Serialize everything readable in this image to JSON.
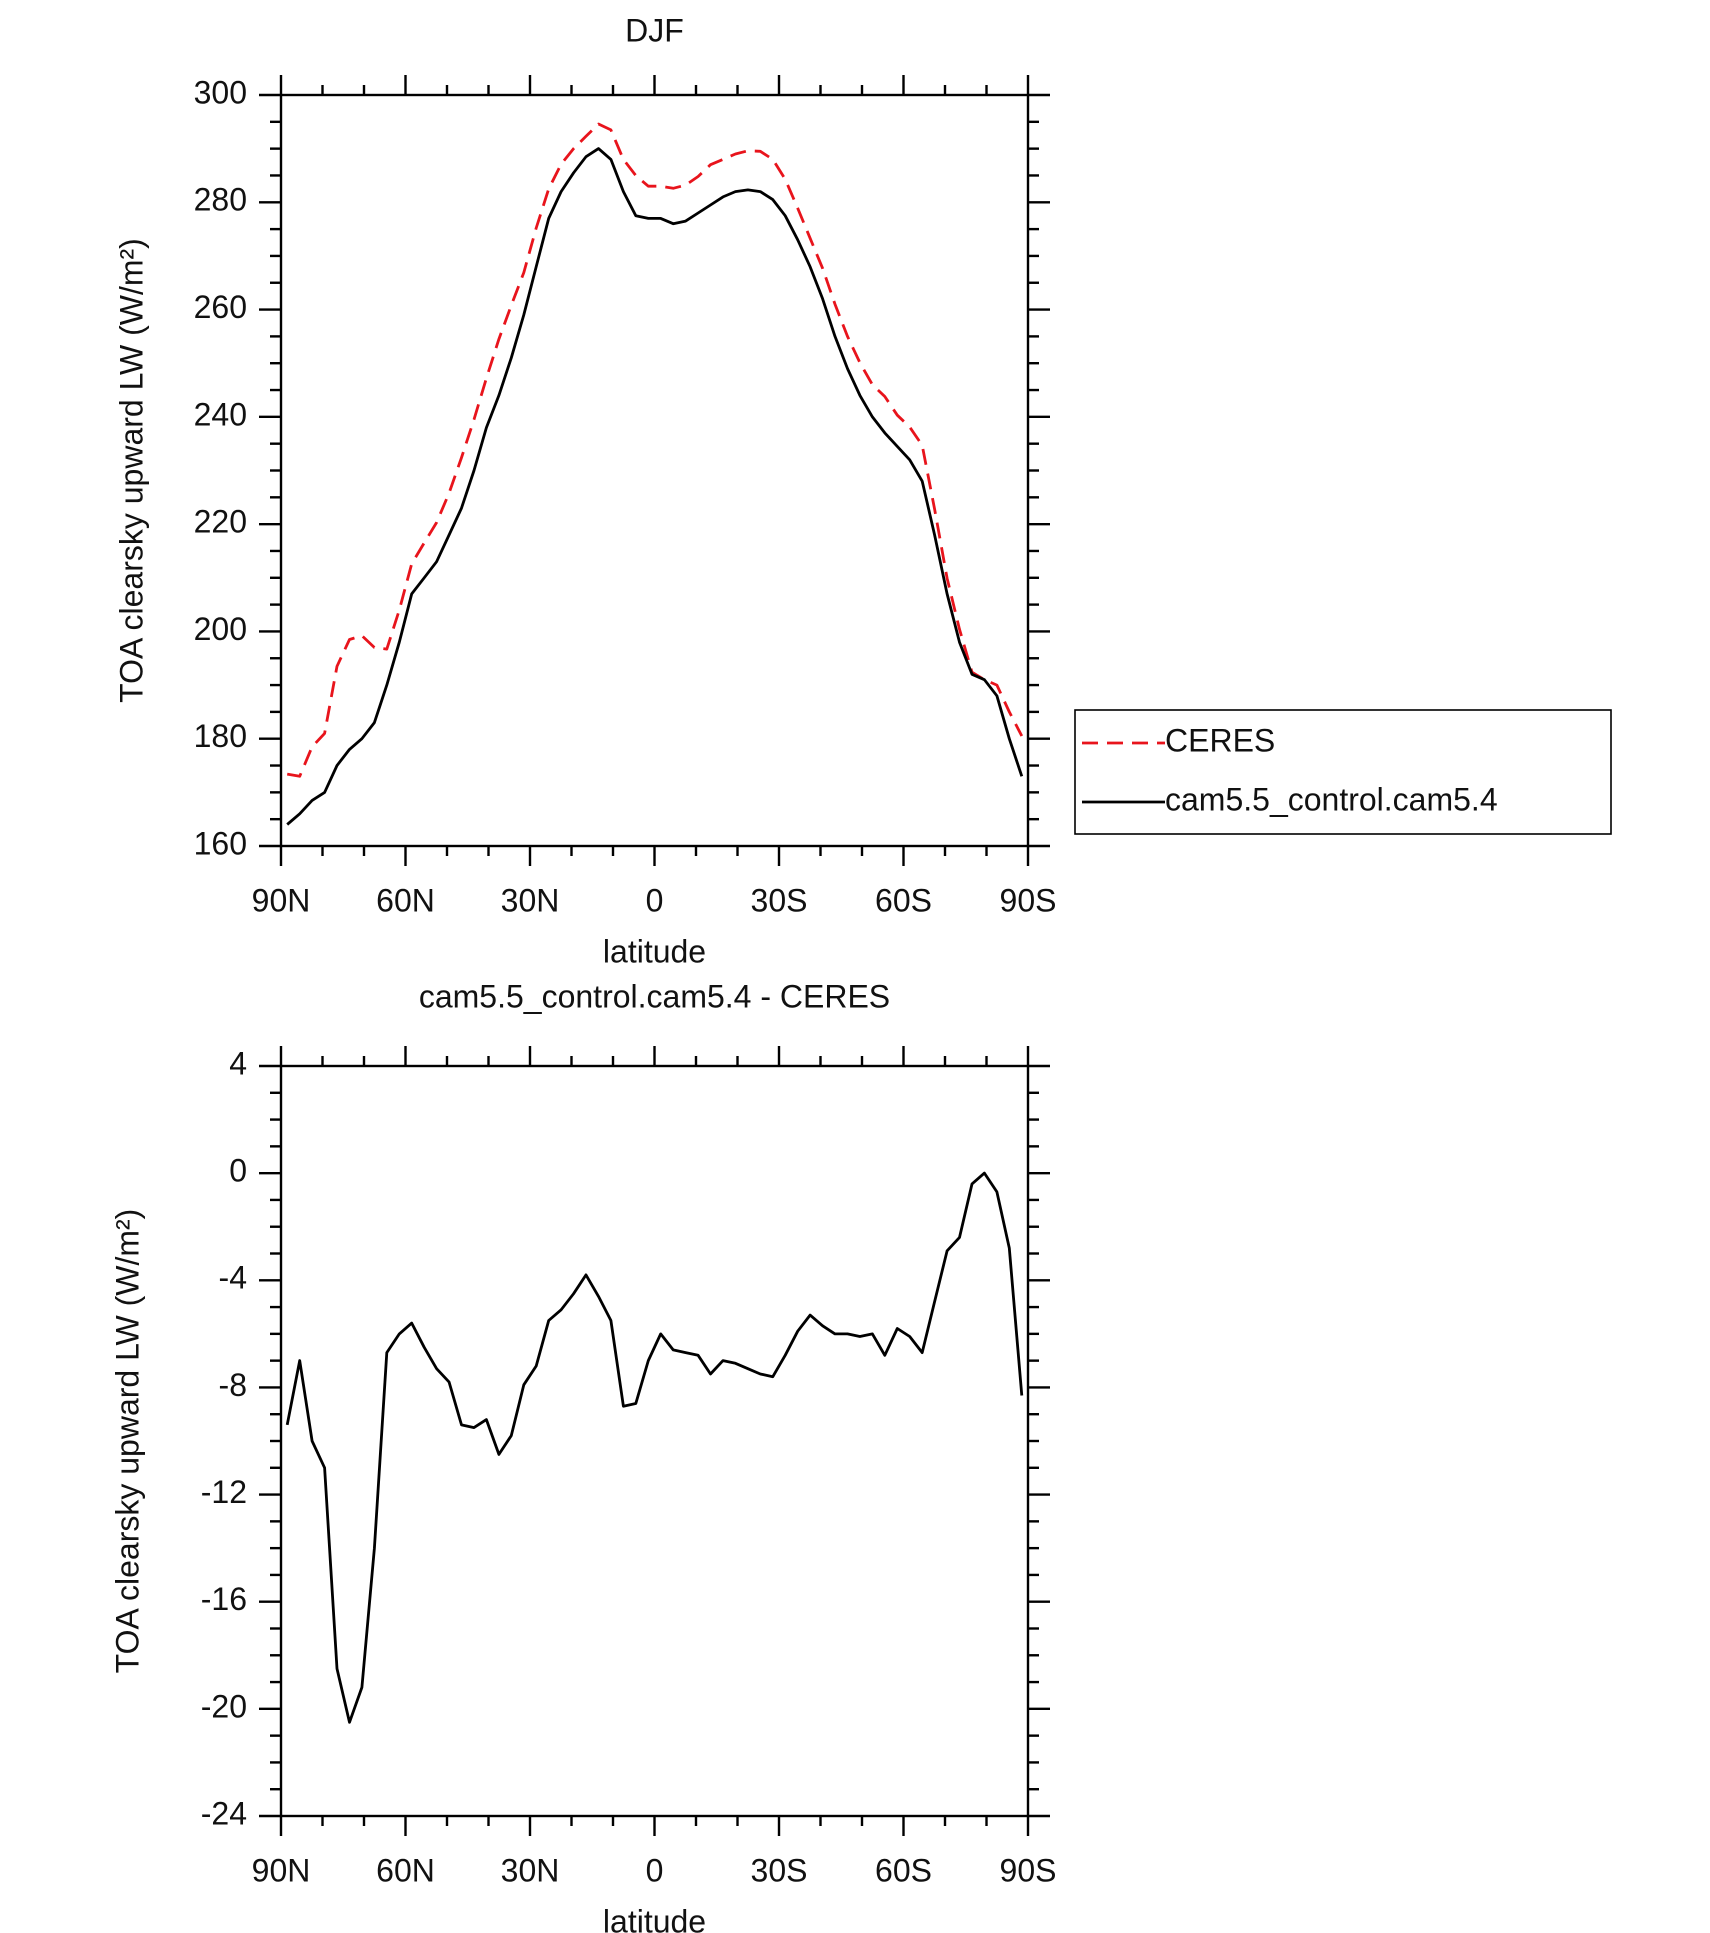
{
  "chart_data": [
    {
      "type": "line",
      "title": "DJF",
      "xlabel": "latitude",
      "ylabel": "TOA clearsky upward LW (W/m²)",
      "x": [
        88.5,
        85.5,
        82.5,
        79.5,
        76.5,
        73.5,
        70.5,
        67.5,
        64.5,
        61.5,
        58.5,
        55.5,
        52.5,
        49.5,
        46.5,
        43.5,
        40.5,
        37.5,
        34.5,
        31.5,
        28.5,
        25.5,
        22.5,
        19.5,
        16.5,
        13.5,
        10.5,
        7.5,
        4.5,
        1.5,
        -1.5,
        -4.5,
        -7.5,
        -10.5,
        -13.5,
        -16.5,
        -19.5,
        -22.5,
        -25.5,
        -28.5,
        -31.5,
        -34.5,
        -37.5,
        -40.5,
        -43.5,
        -46.5,
        -49.5,
        -52.5,
        -55.5,
        -58.5,
        -61.5,
        -64.5,
        -67.5,
        -70.5,
        -73.5,
        -76.5,
        -79.5,
        -82.5,
        -85.5,
        -88.5
      ],
      "series": [
        {
          "name": "CERES",
          "color": "#e8141c",
          "line_style": "dashed",
          "values": [
            173.4,
            173,
            178.5,
            181,
            193.5,
            198.5,
            199.2,
            197,
            196.7,
            204,
            212.6,
            216.5,
            220.3,
            225.8,
            232.4,
            239.5,
            247.2,
            254.5,
            260.8,
            266.9,
            275.2,
            282.5,
            287.1,
            290,
            292.3,
            294.6,
            293.5,
            288,
            285,
            283,
            283,
            282.6,
            283.2,
            284.8,
            287,
            288,
            289,
            289.6,
            289.5,
            288,
            284.3,
            278.9,
            273.3,
            267.7,
            261,
            255,
            250.1,
            246,
            243.8,
            240.3,
            238.1,
            234.7,
            222.8,
            209.9,
            200.4,
            192.4,
            191,
            190,
            185,
            180.5
          ]
        },
        {
          "name": "cam5.5_control.cam5.4",
          "color": "#000000",
          "line_style": "solid",
          "values": [
            164,
            166,
            168.5,
            170,
            175,
            178,
            180,
            183,
            190,
            198,
            207,
            210,
            213,
            218,
            223,
            230,
            238,
            244,
            251,
            259,
            268,
            277,
            282,
            285.5,
            288.5,
            290,
            288,
            282,
            277.5,
            277,
            277,
            276,
            276.5,
            278,
            279.5,
            281,
            282,
            282.3,
            282,
            280.5,
            277.5,
            273,
            268,
            262,
            255,
            249,
            244,
            240,
            237,
            234.5,
            232,
            228,
            218,
            207,
            198,
            192,
            191,
            188,
            180,
            173
          ]
        }
      ],
      "xlim": [
        90,
        -90
      ],
      "xticks": [
        {
          "value": 90,
          "label": "90N"
        },
        {
          "value": 60,
          "label": "60N"
        },
        {
          "value": 30,
          "label": "30N"
        },
        0,
        {
          "value": -30,
          "label": "30S"
        },
        {
          "value": -60,
          "label": "60S"
        },
        {
          "value": -90,
          "label": "90S"
        }
      ],
      "ylim": [
        160,
        300
      ],
      "yticks": [
        160,
        180,
        200,
        220,
        240,
        260,
        280,
        300
      ],
      "legend": "right"
    },
    {
      "type": "line",
      "title": "cam5.5_control.cam5.4 - CERES",
      "xlabel": "latitude",
      "ylabel": "TOA clearsky upward LW (W/m²)",
      "x": [
        88.5,
        85.5,
        82.5,
        79.5,
        76.5,
        73.5,
        70.5,
        67.5,
        64.5,
        61.5,
        58.5,
        55.5,
        52.5,
        49.5,
        46.5,
        43.5,
        40.5,
        37.5,
        34.5,
        31.5,
        28.5,
        25.5,
        22.5,
        19.5,
        16.5,
        13.5,
        10.5,
        7.5,
        4.5,
        1.5,
        -1.5,
        -4.5,
        -7.5,
        -10.5,
        -13.5,
        -16.5,
        -19.5,
        -22.5,
        -25.5,
        -28.5,
        -31.5,
        -34.5,
        -37.5,
        -40.5,
        -43.5,
        -46.5,
        -49.5,
        -52.5,
        -55.5,
        -58.5,
        -61.5,
        -64.5,
        -67.5,
        -70.5,
        -73.5,
        -76.5,
        -79.5,
        -82.5,
        -85.5,
        -88.5
      ],
      "color": "#000000",
      "values": [
        -9.4,
        -7,
        -10,
        -11,
        -18.5,
        -20.5,
        -19.2,
        -14,
        -6.7,
        -6,
        -5.6,
        -6.5,
        -7.3,
        -7.8,
        -9.4,
        -9.5,
        -9.2,
        -10.5,
        -9.8,
        -7.9,
        -7.2,
        -5.5,
        -5.1,
        -4.5,
        -3.8,
        -4.6,
        -5.5,
        -8.7,
        -8.6,
        -7,
        -6,
        -6.6,
        -6.7,
        -6.8,
        -7.5,
        -7,
        -7.1,
        -7.3,
        -7.5,
        -7.6,
        -6.8,
        -5.9,
        -5.3,
        -5.7,
        -6,
        -6,
        -6.1,
        -6,
        -6.8,
        -5.8,
        -6.1,
        -6.7,
        -4.8,
        -2.9,
        -2.4,
        -0.4,
        0,
        -0.7,
        -2.8,
        -8.3
      ],
      "xlim": [
        90,
        -90
      ],
      "xticks": [
        {
          "value": 90,
          "label": "90N"
        },
        {
          "value": 60,
          "label": "60N"
        },
        {
          "value": 30,
          "label": "30N"
        },
        0,
        {
          "value": -30,
          "label": "30S"
        },
        {
          "value": -60,
          "label": "60S"
        },
        {
          "value": -90,
          "label": "90S"
        }
      ],
      "ylim": [
        -24,
        4
      ],
      "yticks": [
        -24,
        -20,
        -16,
        -12,
        -8,
        -4,
        0,
        4
      ]
    }
  ]
}
